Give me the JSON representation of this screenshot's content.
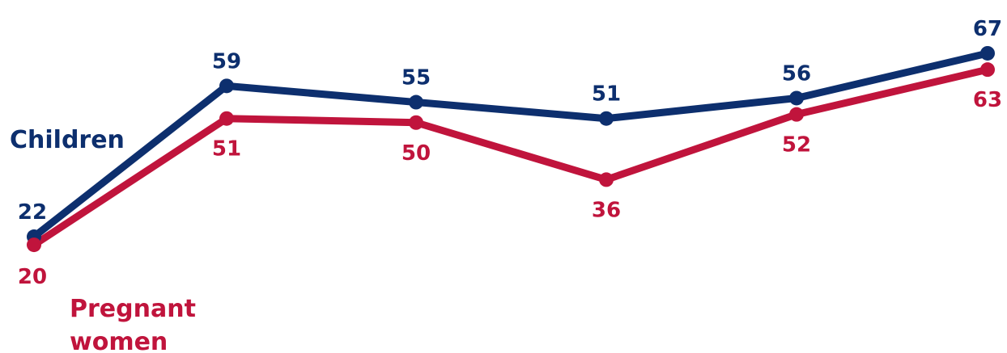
{
  "chart_data": {
    "type": "line",
    "x": [
      1,
      2,
      3,
      4,
      5,
      6
    ],
    "series": [
      {
        "name": "Children",
        "values": [
          22,
          59,
          55,
          51,
          56,
          67
        ],
        "color": "#0d2f6e"
      },
      {
        "name": "Pregnant women",
        "values": [
          20,
          51,
          50,
          36,
          52,
          63
        ],
        "color": "#c0143c"
      }
    ],
    "grid": false,
    "legend": "inline labels (left)"
  },
  "labels": {
    "children": "Children",
    "pregnant_line1": "Pregnant",
    "pregnant_line2": "women"
  }
}
